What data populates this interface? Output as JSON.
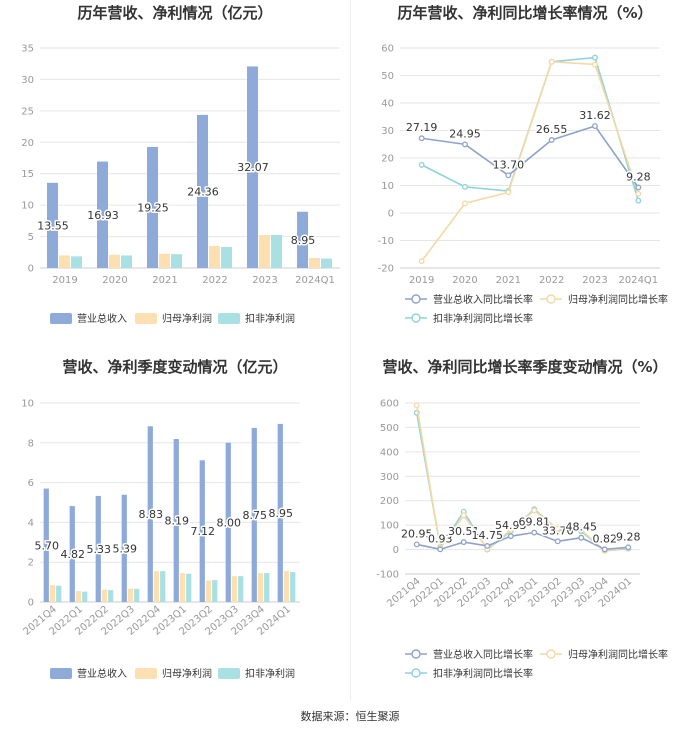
{
  "colors": {
    "revenue": "#8eaad9",
    "net_profit": "#fce0b2",
    "deducted_profit": "#a8e0e3",
    "revenue_line": "#8ea3c9",
    "net_profit_line": "#f5d8a3",
    "deducted_line": "#8ed3d8",
    "text": "#333333",
    "tick": "#999999",
    "grid": "#e6e6e6"
  },
  "source": "数据来源：恒生聚源",
  "chart_data": [
    {
      "id": "annual-bar",
      "type": "bar",
      "title": "历年营收、净利情况（亿元）",
      "categories": [
        "2019",
        "2020",
        "2021",
        "2022",
        "2023",
        "2024Q1"
      ],
      "ylim": [
        0,
        35
      ],
      "yticks": [
        0,
        5,
        10,
        15,
        20,
        25,
        30,
        35
      ],
      "ytick_labels": [
        "0",
        "5",
        "10",
        "15",
        "20",
        "25",
        "30",
        "35"
      ],
      "rotate_xticks": false,
      "label_series": 0,
      "label_values": [
        "13.55",
        "16.93",
        "19.25",
        "24.36",
        "32.07",
        "8.95"
      ],
      "series": [
        {
          "name": "营业总收入",
          "values": [
            13.55,
            16.93,
            19.25,
            24.36,
            32.07,
            8.95
          ]
        },
        {
          "name": "归母净利润",
          "values": [
            2.0,
            2.1,
            2.25,
            3.5,
            5.25,
            1.6
          ]
        },
        {
          "name": "扣非净利润",
          "values": [
            1.85,
            2.0,
            2.2,
            3.35,
            5.25,
            1.5
          ]
        }
      ],
      "grid": true,
      "legend": "bottom"
    },
    {
      "id": "annual-line",
      "type": "line",
      "title": "历年营收、净利同比增长率情况（%）",
      "categories": [
        "2019",
        "2020",
        "2021",
        "2022",
        "2023",
        "2024Q1"
      ],
      "ylim": [
        -20,
        60
      ],
      "yticks": [
        -20,
        -10,
        0,
        10,
        20,
        30,
        40,
        50,
        60
      ],
      "ytick_labels": [
        "-20",
        "-10",
        "0",
        "10",
        "20",
        "30",
        "40",
        "50",
        "60"
      ],
      "rotate_xticks": false,
      "label_series": 0,
      "label_values": [
        "27.19",
        "24.95",
        "13.70",
        "26.55",
        "31.62",
        "9.28"
      ],
      "series": [
        {
          "name": "营业总收入同比增长率",
          "values": [
            27.19,
            24.95,
            13.7,
            26.55,
            31.62,
            9.28
          ]
        },
        {
          "name": "归母净利润同比增长率",
          "values": [
            -17.5,
            3.5,
            7.5,
            55.0,
            54.0,
            7.0
          ]
        },
        {
          "name": "扣非净利润同比增长率",
          "values": [
            17.5,
            9.5,
            8.0,
            55.0,
            56.5,
            4.5
          ]
        }
      ],
      "grid": true,
      "legend": "bottom"
    },
    {
      "id": "quarter-bar",
      "type": "bar",
      "title": "营收、净利季度变动情况（亿元）",
      "categories": [
        "2021Q4",
        "2022Q1",
        "2022Q2",
        "2022Q3",
        "2022Q4",
        "2023Q1",
        "2023Q2",
        "2023Q3",
        "2023Q4",
        "2024Q1"
      ],
      "ylim": [
        0,
        10
      ],
      "yticks": [
        0,
        2,
        4,
        6,
        8,
        10
      ],
      "ytick_labels": [
        "0",
        "2",
        "4",
        "6",
        "8",
        "10"
      ],
      "rotate_xticks": true,
      "label_series": 0,
      "label_values": [
        "5.70",
        "4.82",
        "5.33",
        "5.39",
        "8.83",
        "8.19",
        "7.12",
        "8.00",
        "8.75",
        "8.95"
      ],
      "series": [
        {
          "name": "营业总收入",
          "values": [
            5.7,
            4.82,
            5.33,
            5.39,
            8.83,
            8.19,
            7.12,
            8.0,
            8.75,
            8.95
          ]
        },
        {
          "name": "归母净利润",
          "values": [
            0.85,
            0.55,
            0.62,
            0.68,
            1.55,
            1.45,
            1.08,
            1.3,
            1.45,
            1.55
          ]
        },
        {
          "name": "扣非净利润",
          "values": [
            0.82,
            0.52,
            0.6,
            0.66,
            1.55,
            1.42,
            1.1,
            1.3,
            1.45,
            1.5
          ]
        }
      ],
      "grid": true,
      "legend": "bottom"
    },
    {
      "id": "quarter-line",
      "type": "line",
      "title": "营收、净利同比增长率季度变动情况（%）",
      "categories": [
        "2021Q4",
        "2022Q1",
        "2022Q2",
        "2022Q3",
        "2022Q4",
        "2023Q1",
        "2023Q2",
        "2023Q3",
        "2023Q4",
        "2024Q1"
      ],
      "ylim": [
        -100,
        600
      ],
      "yticks": [
        -100,
        0,
        100,
        200,
        300,
        400,
        500,
        600
      ],
      "ytick_labels": [
        "-100",
        "0",
        "100",
        "200",
        "300",
        "400",
        "500",
        "600"
      ],
      "rotate_xticks": true,
      "label_series": 0,
      "label_values": [
        "20.95",
        "0.93",
        "30.51",
        "14.75",
        "54.93",
        "69.81",
        "33.76",
        "48.45",
        "0.82",
        "9.28"
      ],
      "series": [
        {
          "name": "营业总收入同比增长率",
          "values": [
            20.95,
            0.93,
            30.51,
            14.75,
            54.93,
            69.81,
            33.76,
            48.45,
            0.82,
            9.28
          ]
        },
        {
          "name": "归母净利润同比增长率",
          "values": [
            590,
            5,
            140,
            2,
            80,
            160,
            85,
            80,
            -5,
            7
          ]
        },
        {
          "name": "扣非净利润同比增长率",
          "values": [
            560,
            10,
            155,
            0,
            75,
            165,
            80,
            75,
            -5,
            4
          ]
        }
      ],
      "grid": true,
      "legend": "bottom"
    }
  ]
}
